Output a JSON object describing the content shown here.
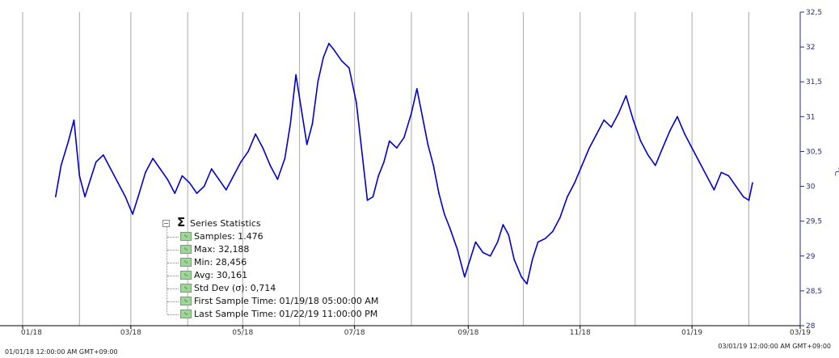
{
  "chart_data": {
    "type": "line",
    "y_axis": {
      "side": "right",
      "title": "°C",
      "range": [
        28,
        32.5
      ],
      "ticks": [
        "28",
        "28,5",
        "29",
        "29,5",
        "30",
        "30,5",
        "31",
        "31,5",
        "32",
        "32,5"
      ]
    },
    "x_axis": {
      "range": [
        "01/01/18",
        "03/01/19"
      ],
      "ticks": [
        "01/18",
        "03/18",
        "05/18",
        "07/18",
        "09/18",
        "11/18",
        "01/19",
        "03/19"
      ],
      "start_label": "01/01/18 12:00:00 AM GMT+09:00",
      "end_label": "03/01/19 12:00:00 AM GMT+09:00"
    },
    "grid": {
      "vertical": true,
      "horizontal": false,
      "color": "#aaaaaa"
    },
    "series": [
      {
        "color": "#0000cc",
        "points": [
          [
            "2018-01-19",
            29.85
          ],
          [
            "2018-01-22",
            30.3
          ],
          [
            "2018-01-26",
            30.65
          ],
          [
            "2018-01-29",
            30.95
          ],
          [
            "2018-02-01",
            30.15
          ],
          [
            "2018-02-04",
            29.85
          ],
          [
            "2018-02-07",
            30.1
          ],
          [
            "2018-02-10",
            30.35
          ],
          [
            "2018-02-14",
            30.45
          ],
          [
            "2018-02-18",
            30.25
          ],
          [
            "2018-02-22",
            30.05
          ],
          [
            "2018-02-26",
            29.85
          ],
          [
            "2018-03-02",
            29.6
          ],
          [
            "2018-03-05",
            29.85
          ],
          [
            "2018-03-09",
            30.2
          ],
          [
            "2018-03-13",
            30.4
          ],
          [
            "2018-03-17",
            30.25
          ],
          [
            "2018-03-21",
            30.1
          ],
          [
            "2018-03-25",
            29.9
          ],
          [
            "2018-03-29",
            30.15
          ],
          [
            "2018-04-02",
            30.05
          ],
          [
            "2018-04-06",
            29.9
          ],
          [
            "2018-04-10",
            30.0
          ],
          [
            "2018-04-14",
            30.25
          ],
          [
            "2018-04-18",
            30.1
          ],
          [
            "2018-04-22",
            29.95
          ],
          [
            "2018-04-26",
            30.15
          ],
          [
            "2018-04-30",
            30.35
          ],
          [
            "2018-05-04",
            30.5
          ],
          [
            "2018-05-08",
            30.75
          ],
          [
            "2018-05-12",
            30.55
          ],
          [
            "2018-05-16",
            30.3
          ],
          [
            "2018-05-20",
            30.1
          ],
          [
            "2018-05-24",
            30.4
          ],
          [
            "2018-05-27",
            30.9
          ],
          [
            "2018-05-30",
            31.6
          ],
          [
            "2018-06-02",
            31.1
          ],
          [
            "2018-06-05",
            30.6
          ],
          [
            "2018-06-08",
            30.9
          ],
          [
            "2018-06-11",
            31.5
          ],
          [
            "2018-06-14",
            31.85
          ],
          [
            "2018-06-17",
            32.05
          ],
          [
            "2018-06-20",
            31.95
          ],
          [
            "2018-06-24",
            31.8
          ],
          [
            "2018-06-28",
            31.7
          ],
          [
            "2018-07-02",
            31.2
          ],
          [
            "2018-07-05",
            30.5
          ],
          [
            "2018-07-08",
            29.8
          ],
          [
            "2018-07-11",
            29.85
          ],
          [
            "2018-07-14",
            30.15
          ],
          [
            "2018-07-17",
            30.35
          ],
          [
            "2018-07-20",
            30.65
          ],
          [
            "2018-07-24",
            30.55
          ],
          [
            "2018-07-28",
            30.7
          ],
          [
            "2018-08-01",
            31.05
          ],
          [
            "2018-08-04",
            31.4
          ],
          [
            "2018-08-07",
            31.0
          ],
          [
            "2018-08-10",
            30.6
          ],
          [
            "2018-08-13",
            30.3
          ],
          [
            "2018-08-16",
            29.9
          ],
          [
            "2018-08-19",
            29.6
          ],
          [
            "2018-08-22",
            29.4
          ],
          [
            "2018-08-26",
            29.1
          ],
          [
            "2018-08-30",
            28.7
          ],
          [
            "2018-09-02",
            28.95
          ],
          [
            "2018-09-05",
            29.2
          ],
          [
            "2018-09-09",
            29.05
          ],
          [
            "2018-09-13",
            29.0
          ],
          [
            "2018-09-17",
            29.2
          ],
          [
            "2018-09-20",
            29.45
          ],
          [
            "2018-09-23",
            29.3
          ],
          [
            "2018-09-26",
            28.95
          ],
          [
            "2018-09-30",
            28.7
          ],
          [
            "2018-10-03",
            28.6
          ],
          [
            "2018-10-06",
            28.95
          ],
          [
            "2018-10-09",
            29.2
          ],
          [
            "2018-10-13",
            29.25
          ],
          [
            "2018-10-17",
            29.35
          ],
          [
            "2018-10-21",
            29.55
          ],
          [
            "2018-10-25",
            29.85
          ],
          [
            "2018-10-29",
            30.05
          ],
          [
            "2018-11-02",
            30.3
          ],
          [
            "2018-11-06",
            30.55
          ],
          [
            "2018-11-10",
            30.75
          ],
          [
            "2018-11-14",
            30.95
          ],
          [
            "2018-11-18",
            30.85
          ],
          [
            "2018-11-22",
            31.05
          ],
          [
            "2018-11-26",
            31.3
          ],
          [
            "2018-11-30",
            30.95
          ],
          [
            "2018-12-04",
            30.65
          ],
          [
            "2018-12-08",
            30.45
          ],
          [
            "2018-12-12",
            30.3
          ],
          [
            "2018-12-16",
            30.55
          ],
          [
            "2018-12-20",
            30.8
          ],
          [
            "2018-12-24",
            31.0
          ],
          [
            "2018-12-28",
            30.75
          ],
          [
            "2019-01-01",
            30.55
          ],
          [
            "2019-01-05",
            30.35
          ],
          [
            "2019-01-09",
            30.15
          ],
          [
            "2019-01-13",
            29.95
          ],
          [
            "2019-01-17",
            30.2
          ],
          [
            "2019-01-21",
            30.15
          ],
          [
            "2019-01-25",
            30.0
          ],
          [
            "2019-01-29",
            29.85
          ],
          [
            "2019-02-01",
            29.8
          ],
          [
            "2019-02-03",
            30.05
          ]
        ]
      }
    ]
  },
  "statistics": {
    "title": "Series Statistics",
    "items": [
      "Samples: 1.476",
      "Max: 32,188",
      "Min: 28,456",
      "Avg: 30,161",
      "Std Dev (σ): 0,714",
      "First Sample Time: 01/19/18 05:00:00 AM",
      "Last Sample Time: 01/22/19 11:00:00 PM"
    ]
  }
}
